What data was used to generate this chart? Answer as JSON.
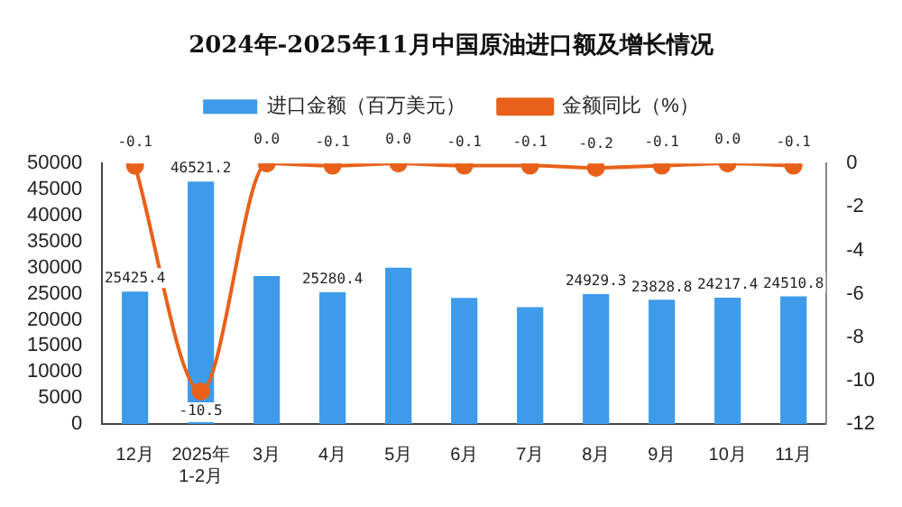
{
  "chart_data": {
    "type": "bar",
    "title": "2024年-2025年11月中国原油进口额及增长情况",
    "categories": [
      "12月",
      "2025年 1-2月",
      "3月",
      "4月",
      "5月",
      "6月",
      "7月",
      "8月",
      "9月",
      "10月",
      "11月"
    ],
    "series": [
      {
        "name": "进口金额（百万美元）",
        "color": "#3d9be9",
        "values": [
          25425.4,
          46521.2,
          28400,
          25280.4,
          30000,
          24200,
          22400,
          24929.3,
          23828.8,
          24217.4,
          24510.8
        ],
        "value_labels": [
          "25425.4",
          "46521.2",
          null,
          "25280.4",
          null,
          null,
          null,
          "24929.3",
          "23828.8",
          "24217.4",
          "24510.8"
        ]
      },
      {
        "name": "金额同比（%）",
        "type": "line",
        "axis": "y2",
        "color": "#e8611a",
        "marker": "circle",
        "values": [
          -0.1,
          -10.5,
          0.0,
          -0.1,
          0.0,
          -0.1,
          -0.1,
          -0.2,
          -0.1,
          0.0,
          -0.1
        ],
        "value_labels": [
          "-0.1",
          "-10.5",
          "0.0",
          "-0.1",
          "0.0",
          "-0.1",
          "-0.1",
          "-0.2",
          "-0.1",
          "0.0",
          "-0.1"
        ]
      }
    ],
    "ylim": [
      0,
      50000
    ],
    "yticks": [
      0,
      5000,
      10000,
      15000,
      20000,
      25000,
      30000,
      35000,
      40000,
      45000,
      50000
    ],
    "y2lim": [
      -12,
      0
    ],
    "y2ticks": [
      -12,
      -10,
      -8,
      -6,
      -4,
      -2,
      0
    ],
    "grid": false,
    "legend": "top"
  }
}
